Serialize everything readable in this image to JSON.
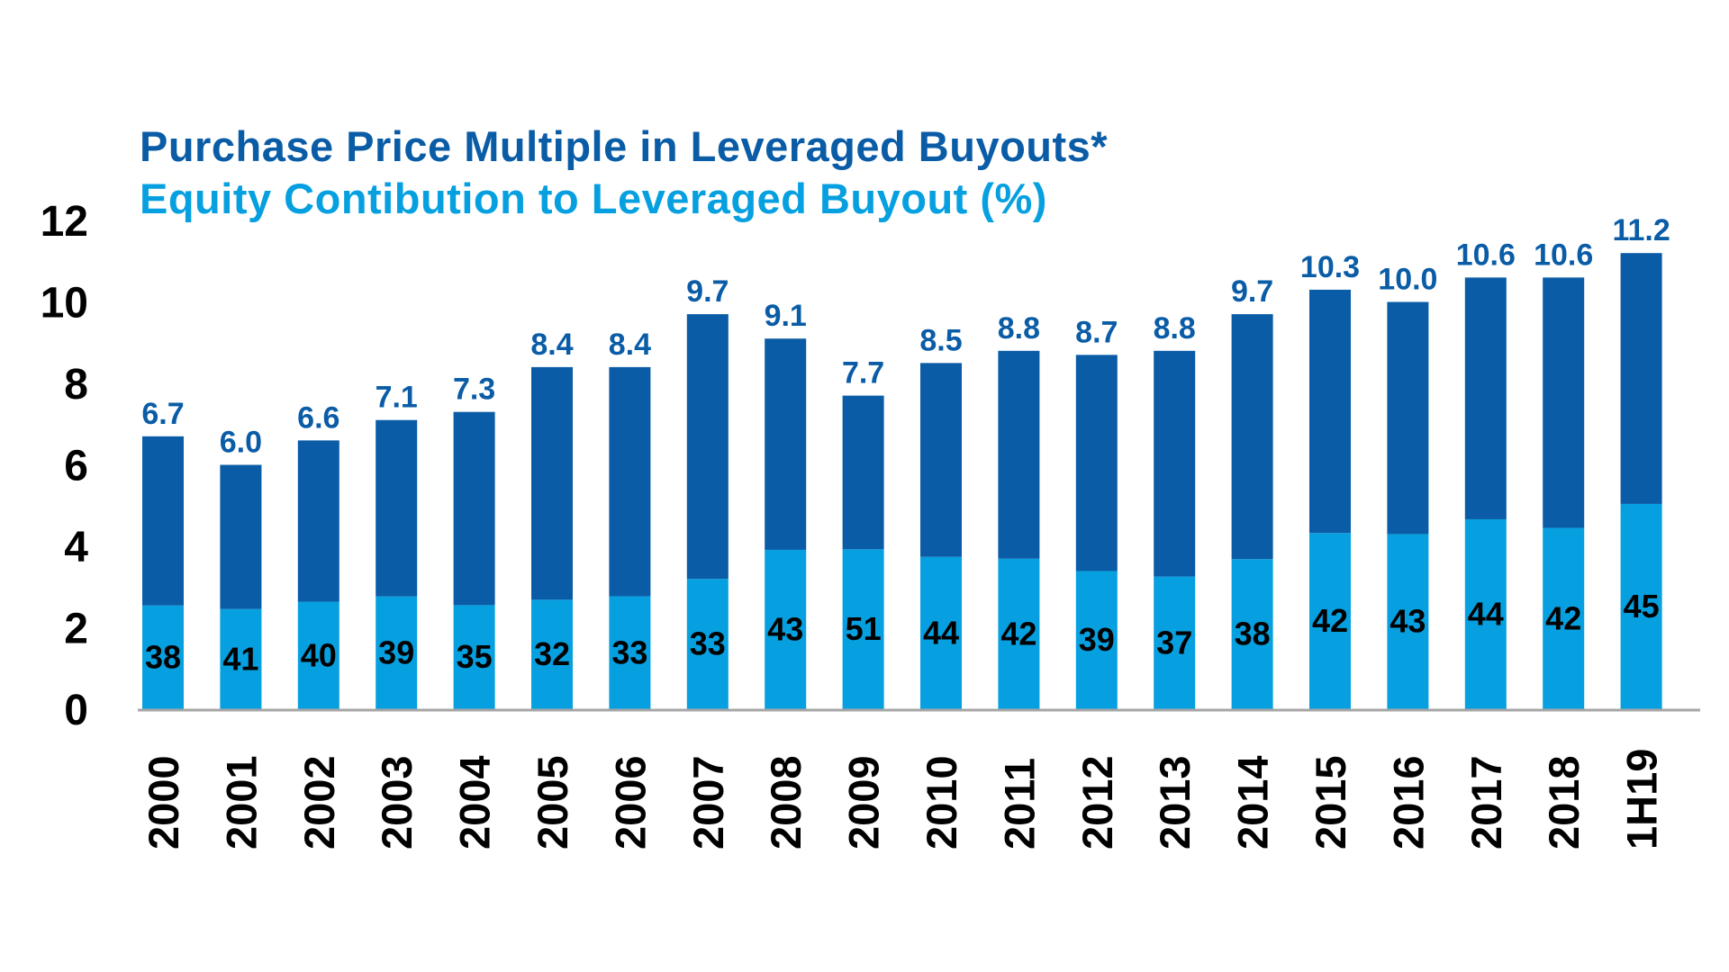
{
  "chart_data": {
    "type": "bar",
    "title": "Purchase Price Multiple in Leveraged Buyouts*",
    "subtitle": "Equity Contibution to Leveraged Buyout (%)",
    "xlabel": "",
    "ylabel": "",
    "ylim": [
      0,
      12
    ],
    "yticks": [
      "0",
      "2",
      "4",
      "6",
      "8",
      "10",
      "12"
    ],
    "grid": false,
    "categories": [
      "2000",
      "2001",
      "2002",
      "2003",
      "2004",
      "2005",
      "2006",
      "2007",
      "2008",
      "2009",
      "2010",
      "2011",
      "2012",
      "2013",
      "2014",
      "2015",
      "2016",
      "2017",
      "2018",
      "1H19"
    ],
    "series": [
      {
        "name": "Purchase Price Multiple in Leveraged Buyouts*",
        "values": [
          6.7,
          6.0,
          6.6,
          7.1,
          7.3,
          8.4,
          8.4,
          9.7,
          9.1,
          7.7,
          8.5,
          8.8,
          8.7,
          8.8,
          9.7,
          10.3,
          10.0,
          10.6,
          10.6,
          11.2
        ],
        "labels": [
          "6.7",
          "6.0",
          "6.6",
          "7.1",
          "7.3",
          "8.4",
          "8.4",
          "9.7",
          "9.1",
          "7.7",
          "8.5",
          "8.8",
          "8.7",
          "8.8",
          "9.7",
          "10.3",
          "10.0",
          "10.6",
          "10.6",
          "11.2"
        ]
      },
      {
        "name": "Equity Contibution to Leveraged Buyout (%)",
        "values": [
          38,
          41,
          40,
          39,
          35,
          32,
          33,
          33,
          43,
          51,
          44,
          42,
          39,
          37,
          38,
          42,
          43,
          44,
          42,
          45
        ],
        "labels": [
          "38",
          "41",
          "40",
          "39",
          "35",
          "32",
          "33",
          "33",
          "43",
          "51",
          "44",
          "42",
          "39",
          "37",
          "38",
          "42",
          "43",
          "44",
          "42",
          "45"
        ]
      }
    ]
  },
  "colors": {
    "multiple": "#0a5ca6",
    "equity": "#06a0e0",
    "title_dark": "#0a5ca6",
    "title_light": "#06a0e0",
    "axis": "#a6a6a6",
    "text": "#000000"
  }
}
